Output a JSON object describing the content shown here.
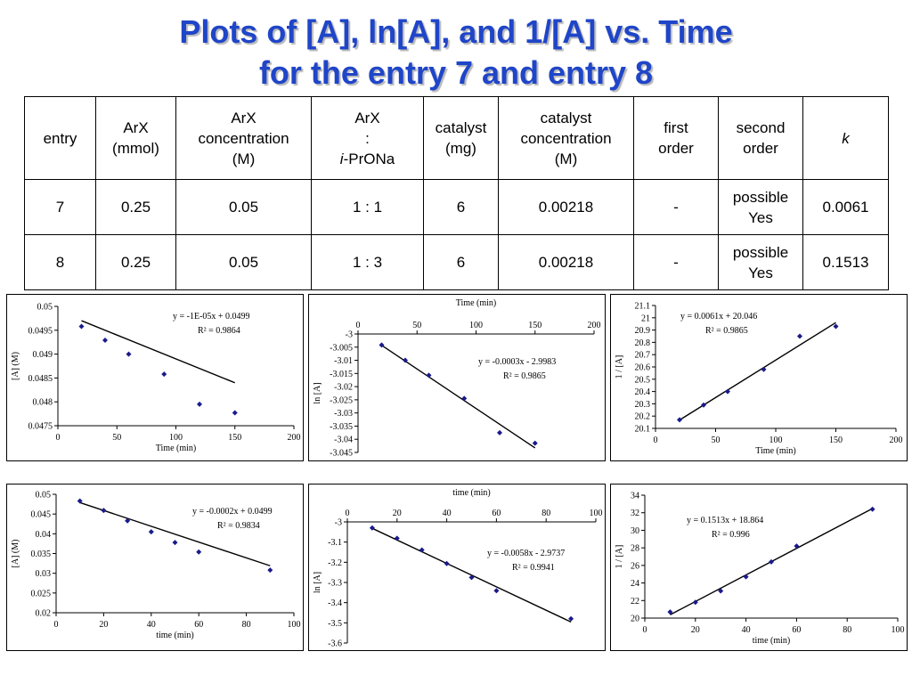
{
  "title": {
    "line1": "Plots of [A], ln[A], and 1/[A] vs. Time",
    "line2": "for the entry 7 and entry 8"
  },
  "table": {
    "headers": [
      [
        "entry"
      ],
      [
        "ArX",
        "(mmol)"
      ],
      [
        "ArX",
        "concentration",
        "(M)"
      ],
      [
        "ArX",
        ":",
        "i-PrONa"
      ],
      [
        "catalyst",
        "(mg)"
      ],
      [
        "catalyst",
        "concentration",
        "(M)"
      ],
      [
        "first",
        "order"
      ],
      [
        "second",
        "order"
      ],
      [
        "k"
      ]
    ],
    "rows": [
      [
        "7",
        "0.25",
        "0.05",
        "1 : 1",
        "6",
        "0.00218",
        "-",
        [
          "possible",
          "Yes"
        ],
        "0.0061"
      ],
      [
        "8",
        "0.25",
        "0.05",
        "1 : 3",
        "6",
        "0.00218",
        "-",
        [
          "possible",
          "Yes"
        ],
        "0.1513"
      ]
    ]
  },
  "chart_data": [
    {
      "type": "scatter",
      "xlabel": "Time (min)",
      "ylabel": "[A] (M)",
      "xlim": [
        0,
        200
      ],
      "ylim": [
        0.0475,
        0.05
      ],
      "xticks": [
        "0",
        "50",
        "100",
        "150",
        "200"
      ],
      "yticks": [
        "0.0475",
        "0.048",
        "0.0485",
        "0.049",
        "0.0495",
        "0.05"
      ],
      "x_axis_position": "bottom",
      "points": [
        [
          20,
          0.04958
        ],
        [
          40,
          0.04929
        ],
        [
          60,
          0.049
        ],
        [
          90,
          0.04858
        ],
        [
          120,
          0.04795
        ],
        [
          150,
          0.04777
        ]
      ],
      "trendline": {
        "slope": -1e-05,
        "intercept": 0.0499
      },
      "equation": "y = -1E-05x + 0.0499",
      "r2": "R² = 0.9864",
      "marker_color": "#1a1a8c"
    },
    {
      "type": "scatter",
      "xlabel": "Time (min)",
      "ylabel": "ln [A]",
      "xlim": [
        0,
        200
      ],
      "ylim": [
        -3.045,
        -3.0
      ],
      "xticks": [
        "0",
        "50",
        "100",
        "150",
        "200"
      ],
      "yticks": [
        "-3.045",
        "-3.04",
        "-3.035",
        "-3.03",
        "-3.025",
        "-3.02",
        "-3.015",
        "-3.01",
        "-3.005",
        "-3"
      ],
      "x_axis_position": "top",
      "points": [
        [
          20,
          -3.0042
        ],
        [
          40,
          -3.01
        ],
        [
          60,
          -3.0157
        ],
        [
          90,
          -3.0245
        ],
        [
          120,
          -3.0375
        ],
        [
          150,
          -3.0415
        ]
      ],
      "trendline": {
        "slope": -0.0003,
        "intercept": -2.9983
      },
      "equation": "y = -0.0003x - 2.9983",
      "r2": "R² = 0.9865",
      "marker_color": "#1a1a8c"
    },
    {
      "type": "scatter",
      "xlabel": "Time (min)",
      "ylabel": "1 / [A]",
      "xlim": [
        0,
        200
      ],
      "ylim": [
        20.1,
        21.1
      ],
      "xticks": [
        "0",
        "50",
        "100",
        "150",
        "200"
      ],
      "yticks": [
        "20.1",
        "20.2",
        "20.3",
        "20.4",
        "20.5",
        "20.6",
        "20.7",
        "20.8",
        "20.9",
        "21",
        "21.1"
      ],
      "x_axis_position": "bottom",
      "points": [
        [
          20,
          20.17
        ],
        [
          40,
          20.29
        ],
        [
          60,
          20.4
        ],
        [
          90,
          20.58
        ],
        [
          120,
          20.85
        ],
        [
          150,
          20.93
        ]
      ],
      "trendline": {
        "slope": 0.0061,
        "intercept": 20.046
      },
      "equation": "y = 0.0061x + 20.046",
      "r2": "R² = 0.9865",
      "marker_color": "#1a1a8c"
    },
    {
      "type": "scatter",
      "xlabel": "time (min)",
      "ylabel": "[A] (M)",
      "xlim": [
        0,
        100
      ],
      "ylim": [
        0.02,
        0.05
      ],
      "xticks": [
        "0",
        "20",
        "40",
        "60",
        "80",
        "100"
      ],
      "yticks": [
        "0.02",
        "0.025",
        "0.03",
        "0.035",
        "0.04",
        "0.045",
        "0.05"
      ],
      "x_axis_position": "bottom",
      "points": [
        [
          10,
          0.0483
        ],
        [
          20,
          0.0459
        ],
        [
          30,
          0.0433
        ],
        [
          40,
          0.0405
        ],
        [
          50,
          0.0378
        ],
        [
          60,
          0.0354
        ],
        [
          90,
          0.0308
        ]
      ],
      "trendline": {
        "slope": -0.0002,
        "intercept": 0.0499
      },
      "equation": "y = -0.0002x + 0.0499",
      "r2": "R² = 0.9834",
      "marker_color": "#1a1a8c"
    },
    {
      "type": "scatter",
      "xlabel": "time (min)",
      "ylabel": "ln [A]",
      "xlim": [
        0,
        100
      ],
      "ylim": [
        -3.6,
        -3.0
      ],
      "xticks": [
        "0",
        "20",
        "40",
        "60",
        "80",
        "100"
      ],
      "yticks": [
        "-3.6",
        "-3.5",
        "-3.4",
        "-3.3",
        "-3.2",
        "-3.1",
        "-3"
      ],
      "x_axis_position": "top",
      "points": [
        [
          10,
          -3.03
        ],
        [
          20,
          -3.081
        ],
        [
          30,
          -3.139
        ],
        [
          40,
          -3.206
        ],
        [
          50,
          -3.275
        ],
        [
          60,
          -3.341
        ],
        [
          90,
          -3.48
        ]
      ],
      "trendline": {
        "slope": -0.0058,
        "intercept": -2.9737
      },
      "equation": "y = -0.0058x - 2.9737",
      "r2": "R² = 0.9941",
      "marker_color": "#1a1a8c"
    },
    {
      "type": "scatter",
      "xlabel": "time (min)",
      "ylabel": "1 / [A]",
      "xlim": [
        0,
        100
      ],
      "ylim": [
        20,
        34
      ],
      "xticks": [
        "0",
        "20",
        "40",
        "60",
        "80",
        "100"
      ],
      "yticks": [
        "20",
        "22",
        "24",
        "26",
        "28",
        "30",
        "32",
        "34"
      ],
      "x_axis_position": "bottom",
      "points": [
        [
          10,
          20.7
        ],
        [
          20,
          21.8
        ],
        [
          30,
          23.1
        ],
        [
          40,
          24.7
        ],
        [
          50,
          26.4
        ],
        [
          60,
          28.2
        ],
        [
          90,
          32.4
        ]
      ],
      "trendline": {
        "slope": 0.1513,
        "intercept": 18.864
      },
      "equation": "y = 0.1513x + 18.864",
      "r2": "R² = 0.996",
      "marker_color": "#1a1a8c"
    }
  ]
}
